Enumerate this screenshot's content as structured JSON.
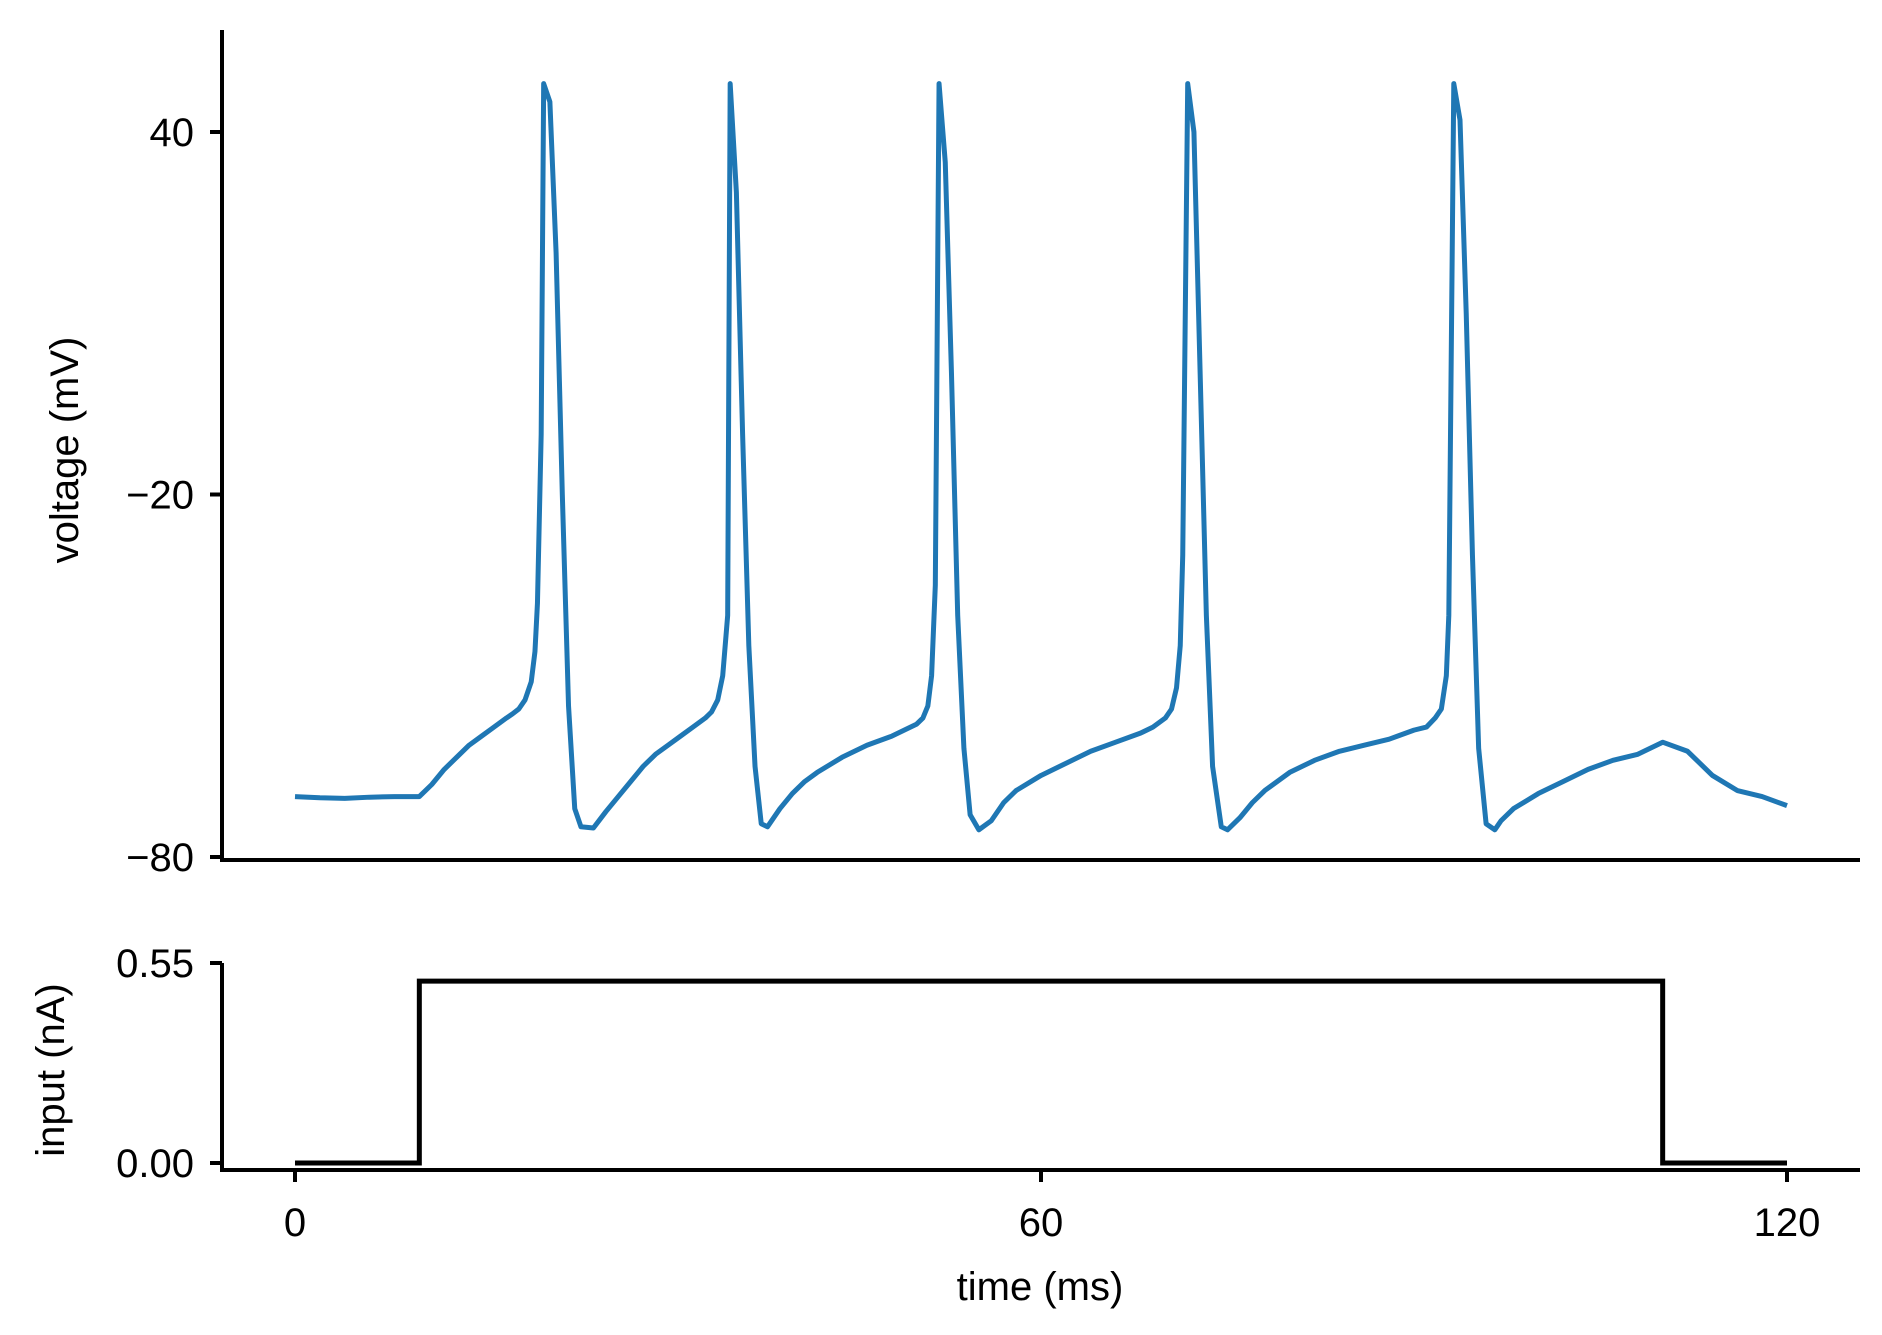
{
  "chart_data": [
    {
      "type": "line",
      "title": "",
      "xlabel": "",
      "ylabel": "voltage (mV)",
      "xlim": [
        -6,
        126
      ],
      "ylim": [
        -80,
        56
      ],
      "yticks": [
        40,
        -20,
        -80
      ],
      "ytick_labels": [
        "40",
        "−20",
        "−80"
      ],
      "grid": false,
      "series": [
        {
          "color": "#1f77b4",
          "x": [
            0,
            2,
            4,
            6,
            8,
            9,
            10,
            11,
            12,
            13,
            14,
            15,
            16,
            17,
            17.5,
            18,
            18.5,
            19,
            19.3,
            19.5,
            19.8,
            20.0,
            20.5,
            21,
            21.5,
            22,
            22.5,
            23,
            24,
            25,
            26,
            27,
            28,
            29,
            30,
            31,
            32,
            33,
            33.5,
            34,
            34.4,
            34.8,
            35.0,
            35.5,
            36,
            36.5,
            37,
            37.5,
            38,
            39,
            40,
            41,
            42,
            44,
            46,
            48,
            49,
            50,
            50.5,
            50.9,
            51.2,
            51.5,
            51.8,
            52.3,
            52.8,
            53.3,
            53.8,
            54.3,
            55,
            56,
            57,
            58,
            60,
            62,
            64,
            66,
            68,
            69,
            70,
            70.5,
            70.9,
            71.2,
            71.4,
            71.8,
            72.3,
            72.8,
            73.3,
            73.8,
            74.5,
            75,
            76,
            77,
            78,
            80,
            82,
            84,
            86,
            88,
            90,
            91,
            91.7,
            92.2,
            92.6,
            92.8,
            93.2,
            93.7,
            94.2,
            94.7,
            95.2,
            95.8,
            96.5,
            97,
            98,
            100,
            102,
            104,
            106,
            108,
            109,
            110,
            112,
            114,
            116,
            118,
            120
          ],
          "y": [
            -70.0,
            -70.2,
            -70.3,
            -70.1,
            -70.0,
            -70.0,
            -70.0,
            -68.0,
            -65.5,
            -63.5,
            -61.5,
            -60.0,
            -58.5,
            -57.0,
            -56.3,
            -55.5,
            -54.0,
            -51.0,
            -46.0,
            -38.0,
            -10.0,
            48.0,
            45.0,
            20.0,
            -20.0,
            -55.0,
            -72.0,
            -75.0,
            -75.2,
            -72.5,
            -70.0,
            -67.5,
            -65.0,
            -63.0,
            -61.5,
            -60.0,
            -58.5,
            -57.0,
            -56.0,
            -54.0,
            -50.0,
            -40.0,
            48.0,
            30.0,
            -10.0,
            -45.0,
            -65.0,
            -74.5,
            -75.0,
            -72.0,
            -69.5,
            -67.5,
            -66.0,
            -63.5,
            -61.5,
            -60.0,
            -59.0,
            -58.0,
            -57.0,
            -55.0,
            -50.0,
            -35.0,
            48.0,
            35.0,
            0.0,
            -40.0,
            -62.0,
            -73.0,
            -75.5,
            -74.0,
            -71.0,
            -69.0,
            -66.5,
            -64.5,
            -62.5,
            -61.0,
            -59.5,
            -58.5,
            -57.0,
            -55.5,
            -52.0,
            -45.0,
            -30.0,
            48.0,
            40.0,
            0.0,
            -40.0,
            -65.0,
            -75.0,
            -75.5,
            -73.5,
            -71.0,
            -69.0,
            -66.0,
            -64.0,
            -62.5,
            -61.5,
            -60.5,
            -59.0,
            -58.5,
            -57.0,
            -55.5,
            -50.0,
            -40.0,
            48.0,
            42.0,
            10.0,
            -30.0,
            -62.0,
            -74.5,
            -75.5,
            -74.0,
            -72.0,
            -69.5,
            -67.5,
            -65.5,
            -64.0,
            -63.0,
            -62.0,
            -61.0,
            -62.5,
            -66.5,
            -69.0,
            -70.0,
            -71.5
          ]
        }
      ]
    },
    {
      "type": "line",
      "title": "",
      "xlabel": "time (ms)",
      "ylabel": "input (nA)",
      "xlim": [
        -6,
        126
      ],
      "ylim": [
        0,
        0.55
      ],
      "xticks": [
        0,
        60,
        120
      ],
      "xtick_labels": [
        "0",
        "60",
        "120"
      ],
      "yticks": [
        0.0,
        0.55
      ],
      "ytick_labels": [
        "0.00",
        "0.55"
      ],
      "grid": false,
      "series": [
        {
          "color": "#000000",
          "x": [
            0,
            10,
            10,
            110,
            110,
            120
          ],
          "y": [
            0.0,
            0.0,
            0.5,
            0.5,
            0.0,
            0.0
          ]
        }
      ]
    }
  ]
}
